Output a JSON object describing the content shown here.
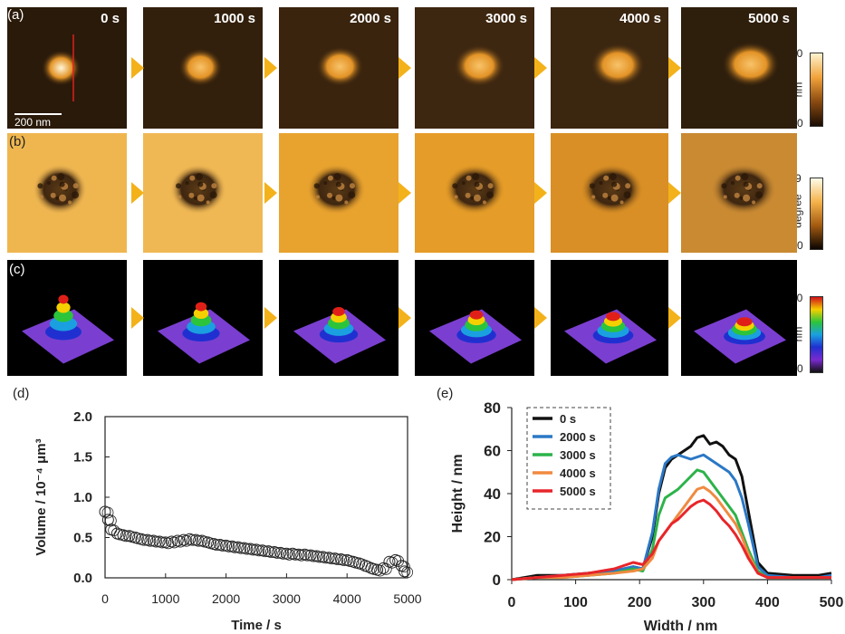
{
  "panels": {
    "a": {
      "label": "(a)"
    },
    "b": {
      "label": "(b)"
    },
    "c": {
      "label": "(c)"
    },
    "d": {
      "label": "(d)"
    },
    "e": {
      "label": "(e)"
    }
  },
  "times": [
    "0 s",
    "1000 s",
    "2000 s",
    "3000 s",
    "4000 s",
    "5000 s"
  ],
  "scalebar": {
    "label": "200 nm"
  },
  "colorbars": {
    "a": {
      "max": "60",
      "min": "0",
      "unit": "nm",
      "colors": [
        "#fdf3d0",
        "#f2a23a",
        "#8a4a10",
        "#1a0c04"
      ]
    },
    "b": {
      "max": "2.9",
      "min": "0",
      "unit": "degree",
      "colors": [
        "#fffbe8",
        "#f6b24b",
        "#a35a10",
        "#0a0502"
      ]
    },
    "c": {
      "max": "60",
      "min": "0",
      "unit": "nm",
      "colors": [
        "#d0101a",
        "#f5d000",
        "#2bc43b",
        "#1aa0e0",
        "#2030d0",
        "#7a2ad0",
        "#111111"
      ]
    }
  },
  "chart_data": [
    {
      "type": "scatter",
      "xlabel": "Time / s",
      "ylabel": "Volume / 10⁻⁴ μm³",
      "xlim": [
        0,
        5000
      ],
      "ylim": [
        0,
        2.0
      ],
      "xticks": [
        "0",
        "1000",
        "2000",
        "3000",
        "4000",
        "5000"
      ],
      "yticks": [
        "0.0",
        "0.5",
        "1.0",
        "1.5",
        "2.0"
      ],
      "grid": false,
      "x": [
        0,
        50,
        100,
        200,
        300,
        400,
        500,
        600,
        700,
        800,
        900,
        1000,
        1100,
        1200,
        1300,
        1400,
        1500,
        1600,
        1700,
        1800,
        1900,
        2000,
        2100,
        2200,
        2300,
        2400,
        2500,
        2600,
        2700,
        2800,
        2900,
        3000,
        3100,
        3200,
        3300,
        3400,
        3500,
        3600,
        3700,
        3800,
        3900,
        4000,
        4100,
        4200,
        4300,
        4400,
        4500,
        4600,
        4700,
        4800,
        4900,
        4950
      ],
      "y": [
        0.82,
        0.72,
        0.6,
        0.55,
        0.53,
        0.52,
        0.5,
        0.48,
        0.47,
        0.46,
        0.45,
        0.44,
        0.45,
        0.46,
        0.47,
        0.48,
        0.47,
        0.46,
        0.44,
        0.42,
        0.41,
        0.4,
        0.39,
        0.38,
        0.37,
        0.36,
        0.35,
        0.34,
        0.33,
        0.32,
        0.31,
        0.3,
        0.3,
        0.29,
        0.29,
        0.28,
        0.27,
        0.26,
        0.25,
        0.24,
        0.23,
        0.22,
        0.2,
        0.18,
        0.15,
        0.12,
        0.1,
        0.12,
        0.2,
        0.22,
        0.15,
        0.08
      ]
    },
    {
      "type": "line",
      "xlabel": "Width  / nm",
      "ylabel": "Height / nm",
      "xlim": [
        0,
        500
      ],
      "ylim": [
        0,
        80
      ],
      "xticks": [
        "0",
        "100",
        "200",
        "300",
        "400",
        "500"
      ],
      "yticks": [
        "0",
        "20",
        "40",
        "60",
        "80"
      ],
      "grid": false,
      "legend": "top-left, dashed box",
      "x": [
        0,
        40,
        80,
        120,
        160,
        190,
        205,
        220,
        230,
        240,
        250,
        260,
        270,
        280,
        290,
        300,
        310,
        320,
        330,
        340,
        350,
        360,
        370,
        385,
        400,
        440,
        480,
        500
      ],
      "series": [
        {
          "name": "0 s",
          "color": "#111111",
          "values": [
            0,
            2,
            2,
            3,
            4,
            6,
            5,
            20,
            40,
            52,
            56,
            58,
            60,
            62,
            66,
            67,
            63,
            64,
            62,
            58,
            56,
            48,
            32,
            8,
            3,
            2,
            2,
            3
          ]
        },
        {
          "name": "2000 s",
          "color": "#2b78c5",
          "values": [
            0,
            1,
            2,
            3,
            4,
            6,
            5,
            22,
            42,
            54,
            57,
            58,
            57,
            56,
            57,
            58,
            56,
            54,
            52,
            50,
            46,
            38,
            26,
            6,
            2,
            1,
            1,
            2
          ]
        },
        {
          "name": "3000 s",
          "color": "#2cb34a",
          "values": [
            0,
            1,
            1,
            2,
            3,
            5,
            4,
            14,
            30,
            38,
            40,
            42,
            45,
            48,
            51,
            50,
            46,
            42,
            38,
            34,
            30,
            22,
            14,
            4,
            1,
            1,
            1,
            1
          ]
        },
        {
          "name": "4000 s",
          "color": "#f08a40",
          "values": [
            0,
            1,
            1,
            2,
            3,
            4,
            5,
            10,
            18,
            22,
            26,
            30,
            34,
            38,
            42,
            43,
            41,
            38,
            34,
            30,
            26,
            20,
            12,
            3,
            1,
            1,
            1,
            1
          ]
        },
        {
          "name": "5000 s",
          "color": "#e8252a",
          "values": [
            0,
            1,
            2,
            3,
            5,
            8,
            7,
            12,
            18,
            22,
            26,
            28,
            31,
            34,
            36,
            37,
            35,
            32,
            28,
            25,
            21,
            16,
            10,
            3,
            1,
            1,
            1,
            1
          ]
        }
      ]
    }
  ]
}
